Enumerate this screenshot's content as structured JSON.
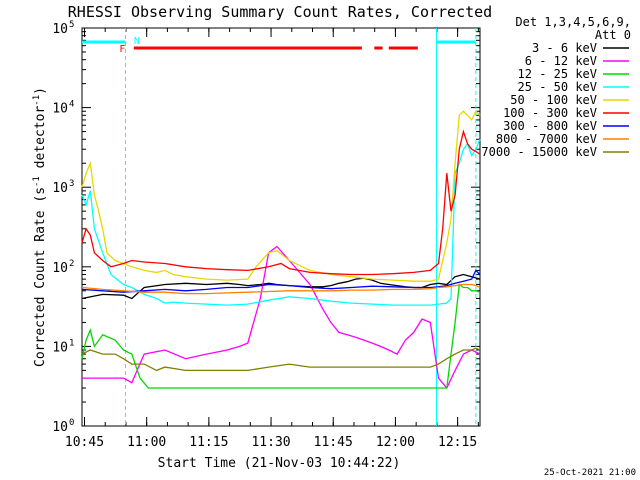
{
  "chart_data": {
    "type": "line",
    "title": "RHESSI Observing Summary Count Rates, Corrected",
    "xlabel": "Start Time (21-Nov-03 10:44:22)",
    "ylabel_parts": [
      "Corrected Count Rate (s",
      "-1",
      " detector",
      "-1",
      ")"
    ],
    "yscale": "log",
    "ylim": [
      1,
      100000
    ],
    "xlim_minutes": [
      0,
      96
    ],
    "y_ticks": [
      {
        "value": 1,
        "base": "10",
        "exp": "0"
      },
      {
        "value": 10,
        "base": "10",
        "exp": "1"
      },
      {
        "value": 100,
        "base": "10",
        "exp": "2"
      },
      {
        "value": 1000,
        "base": "10",
        "exp": "3"
      },
      {
        "value": 10000,
        "base": "10",
        "exp": "4"
      },
      {
        "value": 100000,
        "base": "10",
        "exp": "5"
      }
    ],
    "x_ticks": [
      {
        "minute": 0.6,
        "label": "10:45"
      },
      {
        "minute": 15.6,
        "label": "11:00"
      },
      {
        "minute": 30.6,
        "label": "11:15"
      },
      {
        "minute": 45.6,
        "label": "11:30"
      },
      {
        "minute": 60.6,
        "label": "11:45"
      },
      {
        "minute": 75.6,
        "label": "12:00"
      },
      {
        "minute": 90.6,
        "label": "12:15"
      }
    ],
    "legend_header": [
      "Det 1,3,4,5,6,9,",
      "Att 0"
    ],
    "legend_placement": "right",
    "series": [
      {
        "name": "3 - 6 keV",
        "color": "#000000",
        "x": [
          0,
          5,
          10,
          12,
          15,
          20,
          25,
          30,
          35,
          38,
          40,
          43,
          45,
          47,
          50,
          55,
          58,
          60,
          62,
          64,
          66,
          68,
          70,
          72,
          74,
          76,
          78,
          80,
          82,
          84,
          86,
          88,
          90,
          92,
          94,
          96
        ],
        "y": [
          40,
          45,
          44,
          40,
          55,
          60,
          62,
          60,
          62,
          60,
          58,
          60,
          62,
          60,
          58,
          56,
          56,
          58,
          62,
          65,
          70,
          72,
          68,
          62,
          60,
          58,
          56,
          55,
          55,
          60,
          62,
          60,
          75,
          80,
          75,
          70
        ]
      },
      {
        "name": "6 - 12 keV",
        "color": "#ff00ff",
        "x": [
          0,
          5,
          10,
          12,
          15,
          20,
          25,
          30,
          35,
          38,
          40,
          43,
          45,
          47,
          50,
          55,
          58,
          60,
          62,
          64,
          66,
          68,
          70,
          72,
          74,
          76,
          78,
          80,
          82,
          84,
          86,
          88,
          90,
          92,
          94,
          96
        ],
        "y": [
          4,
          4,
          4,
          3.5,
          8,
          9,
          7,
          8,
          9,
          10,
          11,
          40,
          150,
          180,
          120,
          60,
          30,
          20,
          15,
          14,
          13,
          12,
          11,
          10,
          9,
          8,
          12,
          15,
          22,
          20,
          4,
          3,
          5,
          8,
          9,
          8
        ]
      },
      {
        "name": "12 - 25 keV",
        "color": "#00d800",
        "x": [
          0,
          1,
          2,
          3,
          5,
          8,
          10,
          12,
          14,
          16,
          20,
          25,
          30,
          35,
          40,
          45,
          50,
          55,
          60,
          65,
          70,
          75,
          80,
          84,
          86,
          88,
          89,
          90,
          91,
          92,
          93,
          94,
          95,
          96
        ],
        "y": [
          7,
          12,
          16,
          10,
          14,
          12,
          9,
          8,
          4,
          3,
          3,
          3,
          3,
          3,
          3,
          3,
          3,
          3,
          3,
          3,
          3,
          3,
          3,
          3,
          3,
          3,
          8,
          20,
          60,
          55,
          55,
          50,
          50,
          48
        ]
      },
      {
        "name": "25 - 50 keV",
        "color": "#00ffff",
        "x": [
          0,
          1,
          2,
          3,
          5,
          7,
          10,
          12,
          15,
          18,
          20,
          22,
          25,
          30,
          35,
          40,
          45,
          50,
          55,
          60,
          65,
          70,
          75,
          80,
          84,
          86,
          88,
          89,
          90,
          91,
          92,
          93,
          94,
          95,
          96
        ],
        "y": [
          800,
          600,
          900,
          300,
          150,
          80,
          60,
          55,
          45,
          40,
          35,
          36,
          35,
          34,
          33,
          34,
          38,
          42,
          40,
          37,
          35,
          34,
          33,
          33,
          33,
          34,
          35,
          40,
          1500,
          2000,
          3000,
          3500,
          2500,
          3000,
          4000
        ]
      },
      {
        "name": "50 - 100 keV",
        "color": "#e8d800",
        "x": [
          0,
          1,
          2,
          3,
          4,
          5,
          6,
          8,
          10,
          12,
          15,
          18,
          20,
          22,
          25,
          30,
          35,
          40,
          42,
          45,
          47,
          50,
          55,
          60,
          65,
          70,
          75,
          80,
          84,
          86,
          88,
          89,
          90,
          91,
          92,
          93,
          94,
          95,
          96
        ],
        "y": [
          1000,
          1500,
          2000,
          800,
          500,
          300,
          150,
          120,
          110,
          100,
          90,
          85,
          90,
          80,
          75,
          70,
          68,
          70,
          100,
          150,
          160,
          120,
          90,
          80,
          75,
          70,
          68,
          66,
          66,
          70,
          200,
          400,
          2000,
          8000,
          9000,
          8000,
          7000,
          9000,
          8000
        ]
      },
      {
        "name": "100 - 300 keV",
        "color": "#ff0000",
        "x": [
          0,
          1,
          2,
          3,
          5,
          7,
          10,
          12,
          15,
          20,
          25,
          30,
          35,
          40,
          45,
          48,
          50,
          55,
          60,
          65,
          70,
          75,
          80,
          84,
          86,
          87,
          88,
          89,
          90,
          91,
          92,
          93,
          94,
          95,
          96
        ],
        "y": [
          200,
          300,
          250,
          150,
          120,
          100,
          110,
          120,
          115,
          110,
          100,
          95,
          92,
          90,
          100,
          110,
          95,
          85,
          82,
          80,
          80,
          82,
          85,
          90,
          110,
          300,
          1500,
          500,
          800,
          3000,
          5000,
          3500,
          3000,
          2800,
          2600
        ]
      },
      {
        "name": "300 - 800 keV",
        "color": "#0000ff",
        "x": [
          0,
          5,
          10,
          15,
          20,
          25,
          30,
          35,
          40,
          45,
          50,
          55,
          60,
          65,
          70,
          75,
          80,
          84,
          86,
          88,
          90,
          92,
          94,
          95,
          96
        ],
        "y": [
          52,
          50,
          48,
          50,
          52,
          50,
          52,
          55,
          55,
          60,
          58,
          55,
          53,
          55,
          57,
          56,
          55,
          55,
          56,
          58,
          62,
          66,
          70,
          90,
          80
        ]
      },
      {
        "name": "800 - 7000 keV",
        "color": "#ff8000",
        "x": [
          0,
          5,
          10,
          15,
          20,
          25,
          30,
          35,
          40,
          45,
          50,
          55,
          60,
          65,
          70,
          75,
          80,
          84,
          86,
          88,
          90,
          92,
          94,
          95,
          96
        ],
        "y": [
          55,
          52,
          50,
          48,
          48,
          46,
          46,
          47,
          48,
          49,
          50,
          50,
          50,
          51,
          51,
          52,
          52,
          53,
          55,
          56,
          58,
          60,
          60,
          58,
          55
        ]
      },
      {
        "name": "7000 - 15000 keV",
        "color": "#808000",
        "x": [
          0,
          2,
          5,
          8,
          10,
          12,
          15,
          18,
          20,
          25,
          30,
          35,
          40,
          45,
          50,
          55,
          60,
          65,
          70,
          75,
          80,
          84,
          86,
          88,
          90,
          92,
          94,
          95,
          96
        ],
        "y": [
          8,
          9,
          8,
          8,
          7,
          6,
          6,
          5,
          5.5,
          5,
          5,
          5,
          5,
          5.5,
          6,
          5.5,
          5.5,
          5.5,
          5.5,
          5.5,
          5.5,
          5.5,
          6,
          7,
          8,
          9,
          9,
          9.5,
          9
        ]
      }
    ],
    "flag_markers": [
      {
        "label": "N",
        "color": "#00ffff"
      },
      {
        "label": "F",
        "color": "#ff0000"
      }
    ],
    "footer_date": "25-Oct-2021 21:00"
  }
}
